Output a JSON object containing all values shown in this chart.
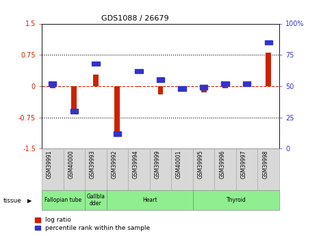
{
  "title": "GDS1088 / 26679",
  "samples": [
    "GSM39991",
    "GSM40000",
    "GSM39993",
    "GSM39992",
    "GSM39994",
    "GSM39999",
    "GSM40001",
    "GSM39995",
    "GSM39996",
    "GSM39997",
    "GSM39998"
  ],
  "log_ratio": [
    -0.05,
    -0.55,
    0.28,
    -1.1,
    -0.02,
    -0.2,
    0.0,
    -0.15,
    -0.05,
    0.0,
    0.8
  ],
  "percentile_rank": [
    52,
    30,
    68,
    12,
    62,
    55,
    48,
    49,
    52,
    52,
    85
  ],
  "left_ylim": [
    -1.5,
    1.5
  ],
  "right_ylim": [
    0,
    100
  ],
  "left_yticks": [
    -1.5,
    -0.75,
    0.0,
    0.75,
    1.5
  ],
  "left_yticklabels": [
    "-1.5",
    "-0.75",
    "0",
    "0.75",
    "1.5"
  ],
  "right_yticks": [
    0,
    25,
    50,
    75,
    100
  ],
  "right_yticklabels": [
    "0",
    "25",
    "50",
    "75",
    "100%"
  ],
  "tissue_groups": [
    {
      "label": "Fallopian tube",
      "start": 0,
      "end": 2,
      "color": "#90ee90"
    },
    {
      "label": "Gallbla\ndder",
      "start": 2,
      "end": 3,
      "color": "#90ee90"
    },
    {
      "label": "Heart",
      "start": 3,
      "end": 7,
      "color": "#90ee90"
    },
    {
      "label": "Thyroid",
      "start": 7,
      "end": 11,
      "color": "#90ee90"
    }
  ],
  "log_ratio_color": "#cc2200",
  "percentile_color": "#3333cc",
  "zero_line_color": "#cc2200",
  "dotted_line_color": "#000000",
  "sample_box_color": "#d8d8d8",
  "legend_log_ratio": "log ratio",
  "legend_percentile": "percentile rank within the sample"
}
